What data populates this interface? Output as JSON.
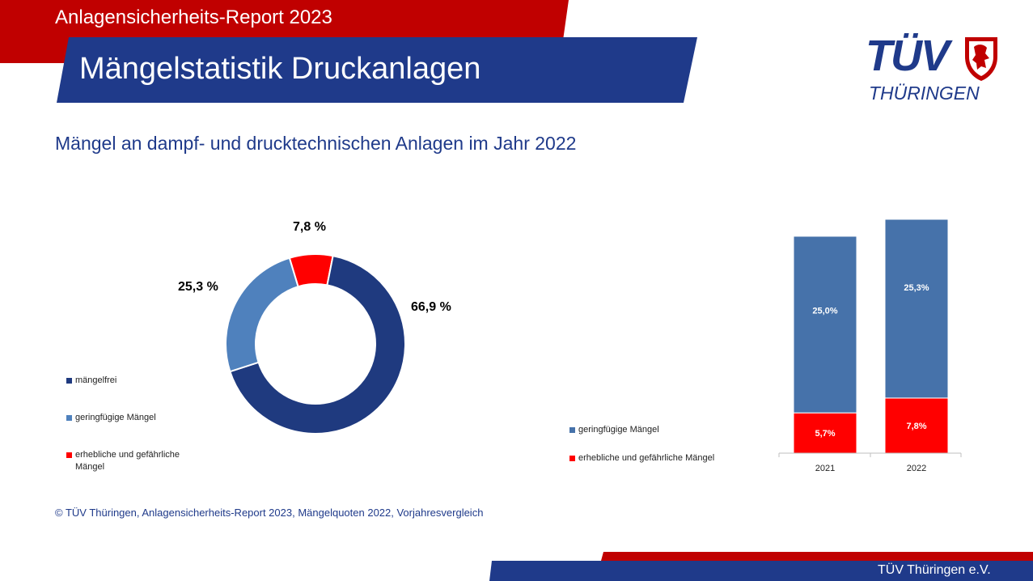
{
  "header": {
    "report_title": "Anlagensicherheits-Report 2023",
    "main_title": "Mängelstatistik Druckanlagen",
    "subtitle": "Mängel an dampf- und drucktechnischen Anlagen im Jahr 2022"
  },
  "logo": {
    "line1": "TÜV",
    "line2": "THÜRINGEN",
    "emblem": "lion-crest-icon"
  },
  "colors": {
    "brand_red": "#c00000",
    "brand_blue": "#1f3a8a",
    "dark_blue": "#1f3a7f",
    "light_blue": "#4f81bd",
    "bar_blue": "#4672aa",
    "red": "#ff0000"
  },
  "chart_data": [
    {
      "type": "pie",
      "donut": true,
      "labels": [
        "mängelfrei",
        "geringfügige Mängel",
        "erhebliche und gefährliche Mängel"
      ],
      "values": [
        66.9,
        25.3,
        7.8
      ],
      "value_labels": [
        "66,9 %",
        "25,3 %",
        "7,8  %"
      ],
      "legend": [
        "mängelfrei",
        "geringfügige Mängel",
        "erhebliche und gefährliche Mängel"
      ],
      "legend_position": "bottom-left"
    },
    {
      "type": "bar",
      "stacked": true,
      "categories": [
        "2021",
        "2022"
      ],
      "series": [
        {
          "name": "erhebliche und gefährliche Mängel",
          "values": [
            5.7,
            7.8
          ],
          "labels": [
            "5,7%",
            "7,8%"
          ]
        },
        {
          "name": "geringfügige Mängel",
          "values": [
            25.0,
            25.3
          ],
          "labels": [
            "25,0%",
            "25,3%"
          ]
        }
      ],
      "legend": [
        "geringfügige Mängel",
        "erhebliche und gefährliche Mängel"
      ],
      "legend_position": "left",
      "grid": false
    }
  ],
  "footer": {
    "source": "© TÜV Thüringen, Anlagensicherheits-Report 2023, Mängelquoten 2022, Vorjahresvergleich",
    "org": "TÜV Thüringen e.V."
  }
}
